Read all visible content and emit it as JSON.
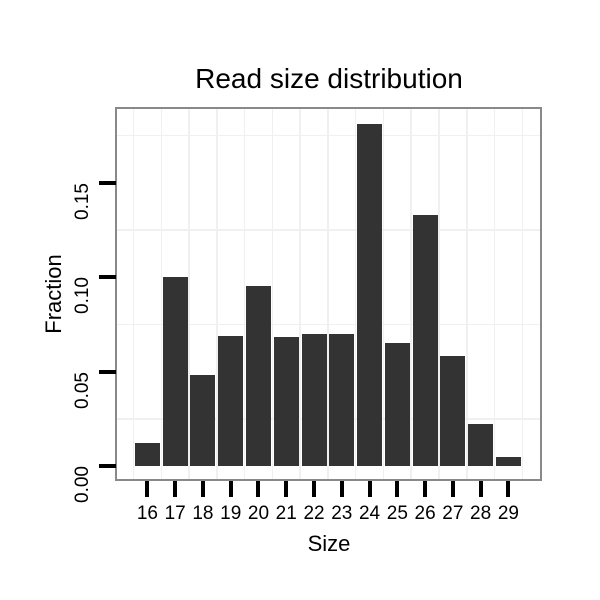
{
  "chart_data": {
    "type": "bar",
    "title": "Read size distribution",
    "xlabel": "Size",
    "ylabel": "Fraction",
    "categories": [
      "16",
      "17",
      "18",
      "19",
      "20",
      "21",
      "22",
      "23",
      "24",
      "25",
      "26",
      "27",
      "28",
      "29"
    ],
    "values": [
      0.012,
      0.1,
      0.048,
      0.069,
      0.095,
      0.068,
      0.07,
      0.07,
      0.181,
      0.065,
      0.133,
      0.058,
      0.022,
      0.005
    ],
    "yticks": [
      {
        "label": "0.00",
        "value": 0.0
      },
      {
        "label": "0.05",
        "value": 0.05
      },
      {
        "label": "0.10",
        "value": 0.1
      },
      {
        "label": "0.15",
        "value": 0.15
      }
    ],
    "ylim": [
      -0.006,
      0.189
    ],
    "grid": {
      "y_minor_values": [
        0.025,
        0.075,
        0.125,
        0.175
      ],
      "x_minor": "between-categories",
      "major_visible": false
    },
    "legend": "none",
    "colors": {
      "bar_fill": "#333333",
      "panel_border": "#898989",
      "gridline": "#f0f0f0",
      "tick": "#000000",
      "background": "#ffffff",
      "text": "#000000"
    }
  }
}
